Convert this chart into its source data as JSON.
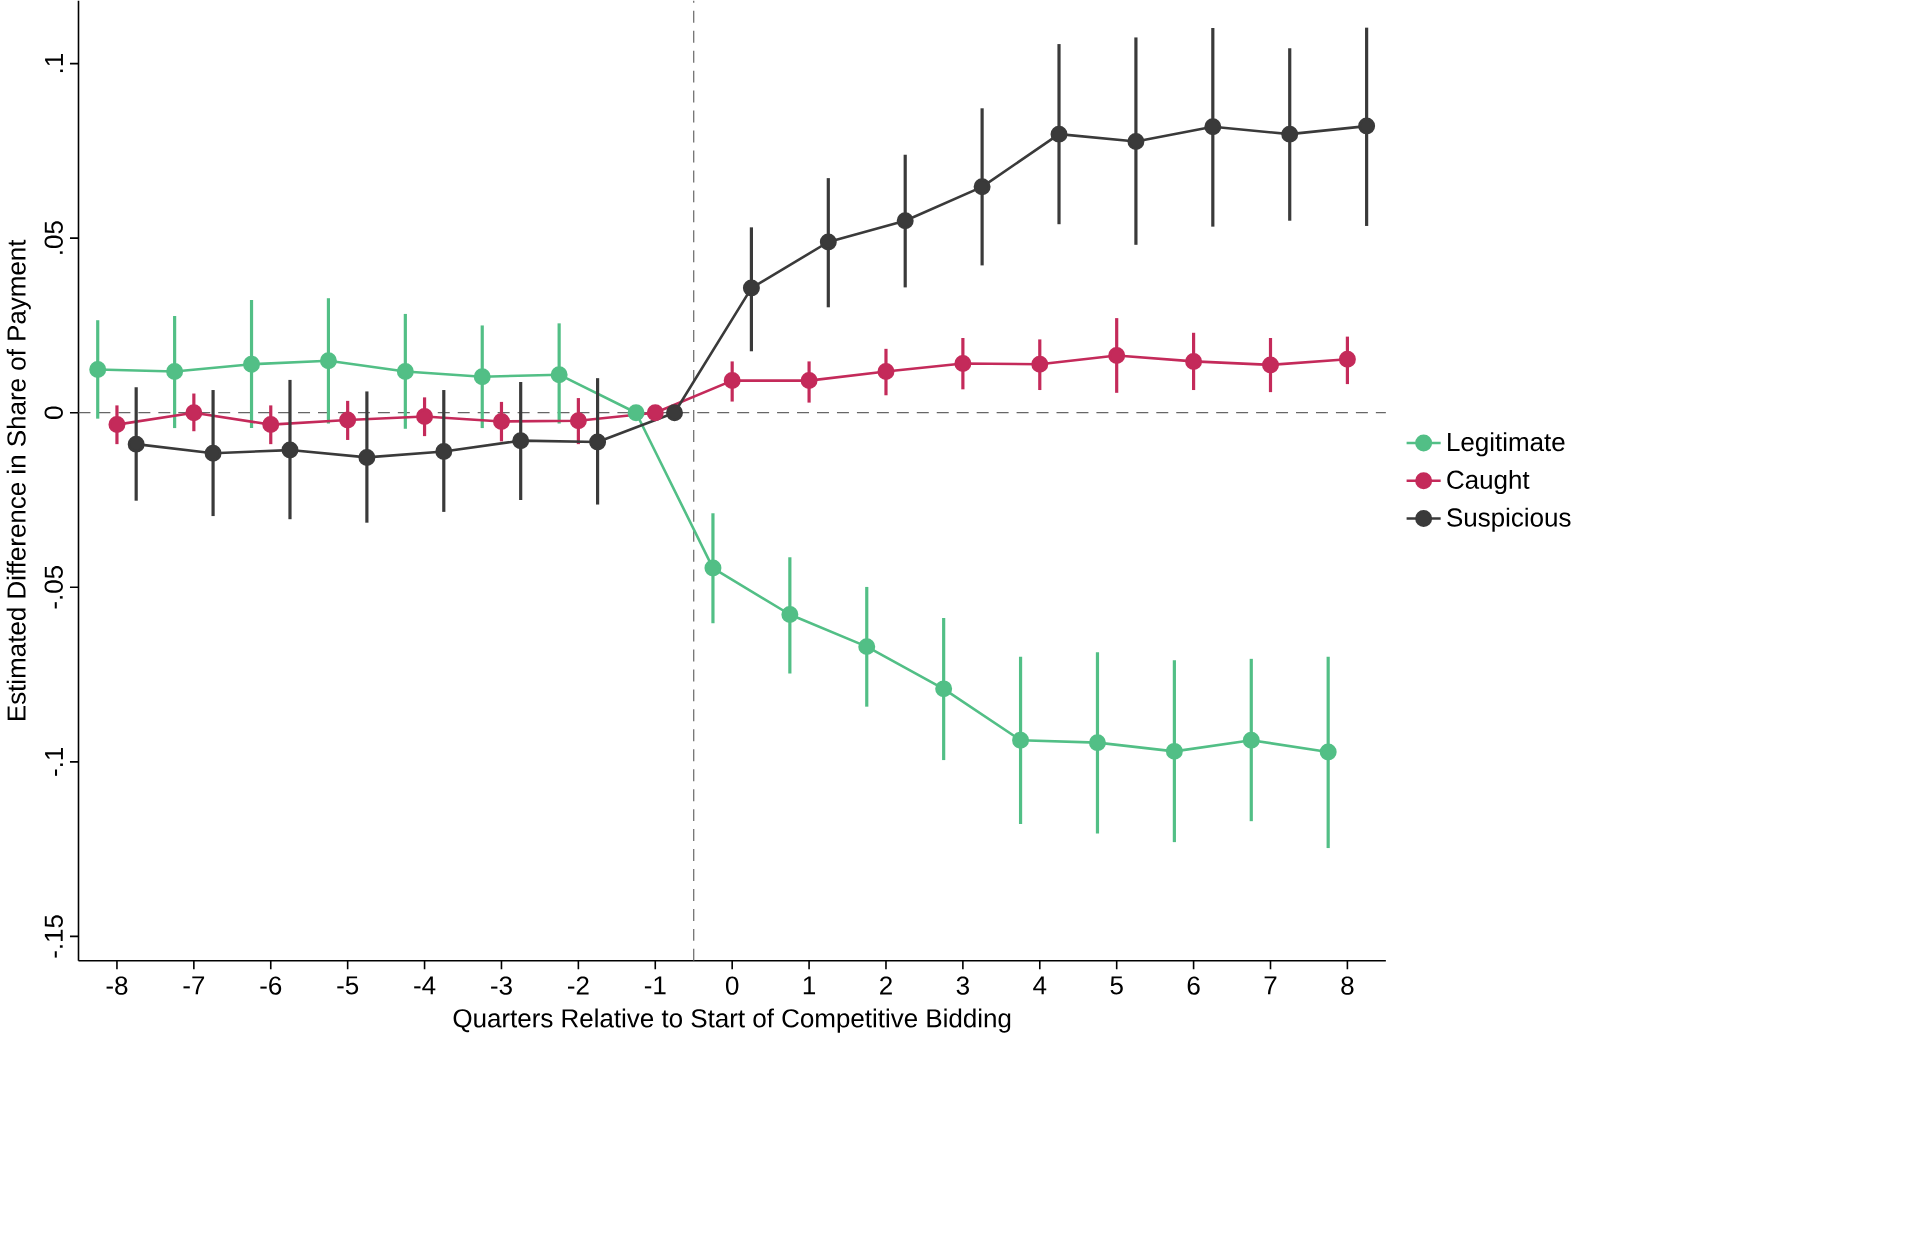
{
  "chart_data": {
    "type": "line",
    "xlabel": "Quarters Relative to Start of Competitive Bidding",
    "ylabel": "Estimated Difference in Share of Payment",
    "xlim": [
      -8.5,
      8.5
    ],
    "ylim": [
      -0.157,
      0.118
    ],
    "xticks": [
      -8,
      -7,
      -6,
      -5,
      -4,
      -3,
      -2,
      -1,
      0,
      1,
      2,
      3,
      4,
      5,
      6,
      7,
      8
    ],
    "yticks": [
      {
        "value": -0.15,
        "label": "-.15"
      },
      {
        "value": -0.1,
        "label": "-.1"
      },
      {
        "value": -0.05,
        "label": "-.05"
      },
      {
        "value": 0,
        "label": "0"
      },
      {
        "value": 0.05,
        "label": ".05"
      },
      {
        "value": 0.1,
        "label": ".1"
      }
    ],
    "grid": false,
    "legend": "right",
    "marker": "circle",
    "line_style": "solid",
    "ref_lines": [
      {
        "axis": "y",
        "value": 0,
        "color": "#666666",
        "line_style": "dashed"
      },
      {
        "axis": "x",
        "value": -0.5,
        "color": "#666666",
        "line_style": "dashed"
      }
    ],
    "series": [
      {
        "name": "Legitimate",
        "color": "#52bf86",
        "x": [
          -8.25,
          -7.25,
          -6.25,
          -5.25,
          -4.25,
          -3.25,
          -2.25,
          -1.25,
          -0.25,
          0.75,
          1.75,
          2.75,
          3.75,
          4.75,
          5.75,
          6.75,
          7.75
        ],
        "values": [
          0.0124,
          0.0118,
          0.0139,
          0.0149,
          0.0118,
          0.0103,
          0.0109,
          0,
          -0.0445,
          -0.0578,
          -0.067,
          -0.0791,
          -0.0938,
          -0.0945,
          -0.097,
          -0.0938,
          -0.0972
        ],
        "errors": [
          [
            -0.0017,
            0.0265
          ],
          [
            -0.0044,
            0.0277
          ],
          [
            -0.0044,
            0.0323
          ],
          [
            -0.0031,
            0.0328
          ],
          [
            -0.0046,
            0.0283
          ],
          [
            -0.0044,
            0.025
          ],
          [
            -0.0031,
            0.0256
          ],
          null,
          [
            -0.0603,
            -0.0288
          ],
          [
            -0.0747,
            -0.0414
          ],
          [
            -0.0842,
            -0.0499
          ],
          [
            -0.0995,
            -0.0588
          ],
          [
            -0.1178,
            -0.0699
          ],
          [
            -0.1205,
            -0.0686
          ],
          [
            -0.123,
            -0.0709
          ],
          [
            -0.117,
            -0.0705
          ],
          [
            -0.1247,
            -0.0699
          ]
        ]
      },
      {
        "name": "Caught",
        "color": "#c42a5a",
        "x": [
          -8,
          -7,
          -6,
          -5,
          -4,
          -3,
          -2,
          -1,
          0,
          1,
          2,
          3,
          4,
          5,
          6,
          7,
          8
        ],
        "values": [
          -0.0034,
          0,
          -0.0034,
          -0.0021,
          -0.0011,
          -0.0025,
          -0.0023,
          0,
          0.0092,
          0.0092,
          0.0118,
          0.0141,
          0.0139,
          0.0164,
          0.0147,
          0.0137,
          0.0153
        ],
        "errors": [
          [
            -0.009,
            0.0021
          ],
          [
            -0.0053,
            0.0055
          ],
          [
            -0.009,
            0.0021
          ],
          [
            -0.0078,
            0.0034
          ],
          [
            -0.0067,
            0.0044
          ],
          [
            -0.0082,
            0.0031
          ],
          [
            -0.009,
            0.0042
          ],
          null,
          [
            0.0032,
            0.0147
          ],
          [
            0.0029,
            0.0147
          ],
          [
            0.005,
            0.0183
          ],
          [
            0.0067,
            0.0214
          ],
          [
            0.0065,
            0.021
          ],
          [
            0.0057,
            0.0271
          ],
          [
            0.0065,
            0.0229
          ],
          [
            0.0059,
            0.0214
          ],
          [
            0.0082,
            0.0218
          ]
        ]
      },
      {
        "name": "Suspicious",
        "color": "#3a3a3a",
        "x": [
          -7.75,
          -6.75,
          -5.75,
          -4.75,
          -3.75,
          -2.75,
          -1.75,
          -0.75,
          0.25,
          1.25,
          2.25,
          3.25,
          4.25,
          5.25,
          6.25,
          7.25,
          8.25
        ],
        "values": [
          -0.009,
          -0.0116,
          -0.0107,
          -0.0128,
          -0.0111,
          -0.008,
          -0.0084,
          0,
          0.0357,
          0.0489,
          0.055,
          0.0647,
          0.0798,
          0.0777,
          0.0819,
          0.0798,
          0.0821
        ],
        "errors": [
          [
            -0.0252,
            0.0073
          ],
          [
            -0.0296,
            0.0065
          ],
          [
            -0.0305,
            0.0094
          ],
          [
            -0.0315,
            0.0061
          ],
          [
            -0.0284,
            0.0065
          ],
          [
            -0.025,
            0.0088
          ],
          [
            -0.0263,
            0.0099
          ],
          null,
          [
            0.0176,
            0.0531
          ],
          [
            0.0302,
            0.0672
          ],
          [
            0.0359,
            0.0739
          ],
          [
            0.0422,
            0.0872
          ],
          [
            0.054,
            0.1056
          ],
          [
            0.0481,
            0.1075
          ],
          [
            0.0533,
            0.1102
          ],
          [
            0.055,
            0.1044
          ],
          [
            0.0535,
            0.1103
          ]
        ]
      }
    ]
  }
}
